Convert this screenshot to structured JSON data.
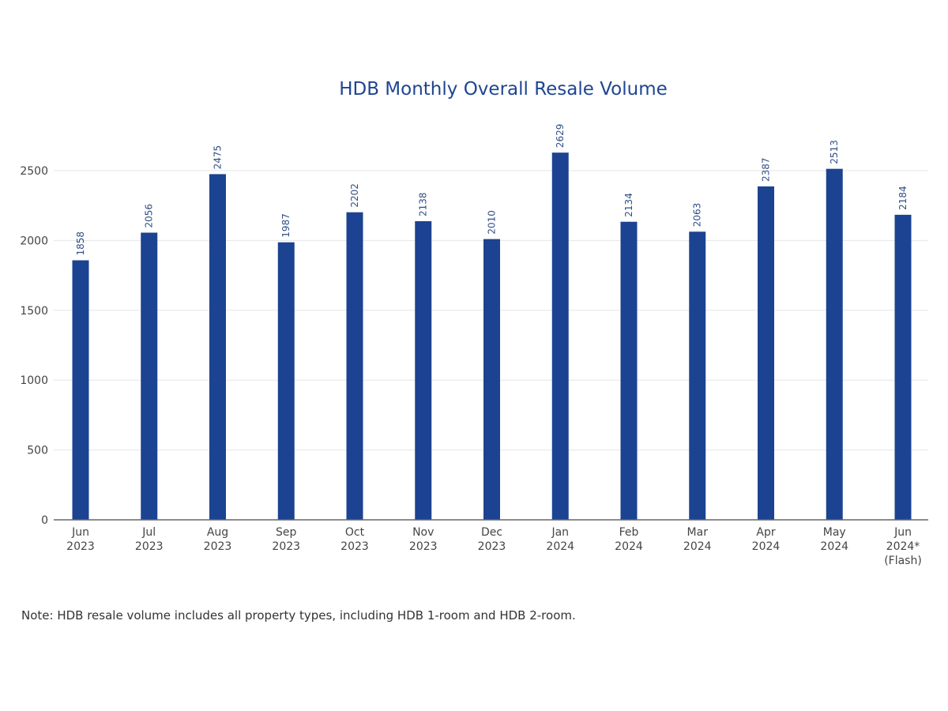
{
  "chart_data": {
    "type": "bar",
    "title": "HDB Monthly Overall Resale Volume",
    "categories": [
      [
        "Jun",
        "2023"
      ],
      [
        "Jul",
        "2023"
      ],
      [
        "Aug",
        "2023"
      ],
      [
        "Sep",
        "2023"
      ],
      [
        "Oct",
        "2023"
      ],
      [
        "Nov",
        "2023"
      ],
      [
        "Dec",
        "2023"
      ],
      [
        "Jan",
        "2024"
      ],
      [
        "Feb",
        "2024"
      ],
      [
        "Mar",
        "2024"
      ],
      [
        "Apr",
        "2024"
      ],
      [
        "May",
        "2024"
      ],
      [
        "Jun",
        "2024*",
        "(Flash)"
      ]
    ],
    "values": [
      1858,
      2056,
      2475,
      1987,
      2202,
      2138,
      2010,
      2629,
      2134,
      2063,
      2387,
      2513,
      2184
    ],
    "yticks": [
      0,
      500,
      1000,
      1500,
      2000,
      2500
    ],
    "ylim": [
      0,
      2800
    ],
    "xlabel": "",
    "ylabel": "",
    "grid": true,
    "data_labels": true,
    "bar_color": "#1c4391"
  },
  "note": "Note: HDB resale volume includes all property types, including HDB 1-room and HDB 2-room."
}
